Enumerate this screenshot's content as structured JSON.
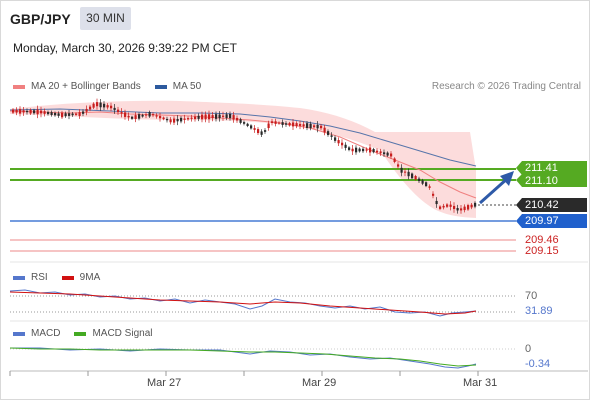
{
  "header": {
    "symbol": "GBP/JPY",
    "timeframe": "30 MIN",
    "datetime": "Monday, March 30, 2026 9:39:22 PM CET"
  },
  "main_legend": {
    "items": [
      {
        "label": "MA 20 + Bollinger Bands",
        "color": "#f08080"
      },
      {
        "label": "MA 50",
        "color": "#2d5a9e"
      }
    ],
    "credit": "Research © 2026 Trading Central"
  },
  "rsi_legend": {
    "items": [
      {
        "label": "RSI",
        "color": "#5577cc"
      },
      {
        "label": "9MA",
        "color": "#d11111"
      }
    ]
  },
  "macd_legend": {
    "items": [
      {
        "label": "MACD",
        "color": "#5577cc"
      },
      {
        "label": "MACD Signal",
        "color": "#44aa22"
      }
    ]
  },
  "price_labels": {
    "resistance_1": "211.41",
    "resistance_2": "211.10",
    "last_price": "210.42",
    "pivot": "209.97",
    "support_1": "209.46",
    "support_2": "209.15"
  },
  "rsi_labels": {
    "level": "70",
    "value": "31.89"
  },
  "macd_labels": {
    "zero": "0",
    "value": "-0.34"
  },
  "x_axis": [
    "Mar 27",
    "Mar 29",
    "Mar 31"
  ],
  "colors": {
    "resistance": "#55aa22",
    "pivot": "#2060cc",
    "support": "#cc2222",
    "candle_up": "#2a2a2a",
    "candle_down": "#c81e1e",
    "arrow": "#2e5aa8",
    "bollinger_fill": "#fbd6d6"
  }
}
